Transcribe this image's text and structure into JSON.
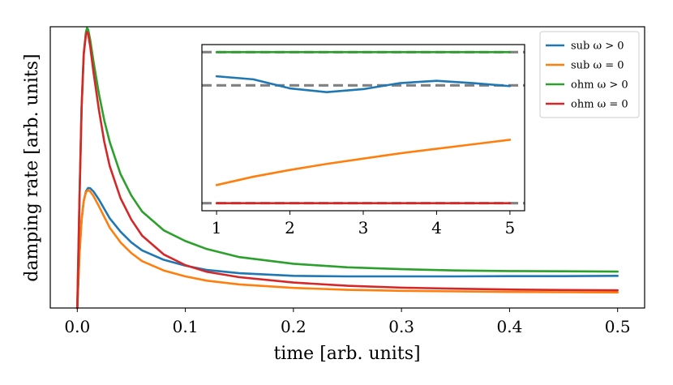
{
  "chart_data": [
    {
      "type": "line",
      "role": "main",
      "title": "",
      "xlabel": "time [arb. units]",
      "ylabel": "damping rate [arb. units]",
      "xlim": [
        -0.025,
        0.525
      ],
      "ylim": [
        0,
        1.05
      ],
      "xticks": [
        0.0,
        0.1,
        0.2,
        0.3,
        0.4,
        0.5
      ],
      "xtick_labels": [
        "0.0",
        "0.1",
        "0.2",
        "0.3",
        "0.4",
        "0.5"
      ],
      "series": [
        {
          "name": "sub ω > 0",
          "color": "#1f77b4",
          "x": [
            0,
            0.002,
            0.004,
            0.006,
            0.008,
            0.01,
            0.012,
            0.015,
            0.02,
            0.025,
            0.03,
            0.04,
            0.05,
            0.06,
            0.08,
            0.1,
            0.12,
            0.15,
            0.2,
            0.25,
            0.3,
            0.35,
            0.4,
            0.45,
            0.5
          ],
          "y": [
            0.0,
            0.2,
            0.33,
            0.4,
            0.435,
            0.448,
            0.447,
            0.435,
            0.405,
            0.37,
            0.335,
            0.285,
            0.245,
            0.215,
            0.18,
            0.158,
            0.142,
            0.13,
            0.12,
            0.118,
            0.118,
            0.118,
            0.119,
            0.119,
            0.12
          ]
        },
        {
          "name": "sub ω = 0",
          "color": "#ff7f0e",
          "x": [
            0,
            0.002,
            0.004,
            0.006,
            0.008,
            0.01,
            0.012,
            0.015,
            0.02,
            0.025,
            0.03,
            0.04,
            0.05,
            0.06,
            0.08,
            0.1,
            0.12,
            0.15,
            0.2,
            0.25,
            0.3,
            0.35,
            0.4,
            0.45,
            0.5
          ],
          "y": [
            0.0,
            0.2,
            0.33,
            0.4,
            0.432,
            0.44,
            0.435,
            0.418,
            0.38,
            0.34,
            0.3,
            0.245,
            0.205,
            0.175,
            0.14,
            0.118,
            0.102,
            0.088,
            0.075,
            0.068,
            0.064,
            0.062,
            0.06,
            0.059,
            0.058
          ]
        },
        {
          "name": "ohm ω > 0",
          "color": "#2ca02c",
          "x": [
            0,
            0.002,
            0.004,
            0.006,
            0.008,
            0.009,
            0.01,
            0.012,
            0.015,
            0.02,
            0.025,
            0.03,
            0.04,
            0.05,
            0.06,
            0.08,
            0.1,
            0.12,
            0.15,
            0.2,
            0.25,
            0.3,
            0.35,
            0.4,
            0.45,
            0.5
          ],
          "y": [
            0.0,
            0.4,
            0.75,
            0.95,
            1.03,
            1.045,
            1.04,
            1.0,
            0.92,
            0.8,
            0.7,
            0.62,
            0.5,
            0.42,
            0.36,
            0.29,
            0.25,
            0.22,
            0.19,
            0.165,
            0.152,
            0.145,
            0.14,
            0.138,
            0.137,
            0.136
          ]
        },
        {
          "name": "ohm ω = 0",
          "color": "#d62728",
          "x": [
            0,
            0.002,
            0.004,
            0.006,
            0.008,
            0.009,
            0.01,
            0.012,
            0.015,
            0.02,
            0.025,
            0.03,
            0.04,
            0.05,
            0.06,
            0.08,
            0.1,
            0.12,
            0.15,
            0.2,
            0.25,
            0.3,
            0.35,
            0.4,
            0.45,
            0.5
          ],
          "y": [
            0.0,
            0.4,
            0.75,
            0.95,
            1.02,
            1.03,
            1.025,
            0.975,
            0.88,
            0.74,
            0.62,
            0.53,
            0.41,
            0.33,
            0.27,
            0.2,
            0.16,
            0.135,
            0.115,
            0.095,
            0.083,
            0.076,
            0.072,
            0.069,
            0.067,
            0.066
          ]
        }
      ],
      "legend": {
        "position": "top-right",
        "entries": [
          {
            "label": "sub ω > 0",
            "color": "#1f77b4"
          },
          {
            "label": "sub ω = 0",
            "color": "#ff7f0e"
          },
          {
            "label": "ohm ω > 0",
            "color": "#2ca02c"
          },
          {
            "label": "ohm ω = 0",
            "color": "#d62728"
          }
        ]
      }
    },
    {
      "type": "line",
      "role": "inset",
      "title": "",
      "xlabel": "",
      "ylabel": "",
      "xlim": [
        0.8,
        5.2
      ],
      "ylim": [
        -0.05,
        1.05
      ],
      "xticks": [
        1,
        2,
        3,
        4,
        5
      ],
      "xtick_labels": [
        "1",
        "2",
        "3",
        "4",
        "5"
      ],
      "reference_lines": [
        {
          "style": "dashed",
          "color": "#808080",
          "y": 1.0
        },
        {
          "style": "dashed",
          "color": "#808080",
          "y": 0.78
        },
        {
          "style": "dashed",
          "color": "#808080",
          "y": 0.0
        }
      ],
      "series": [
        {
          "name": "sub ω > 0",
          "color": "#1f77b4",
          "x": [
            1,
            1.5,
            2,
            2.5,
            3,
            3.5,
            4,
            4.5,
            5
          ],
          "y": [
            0.84,
            0.82,
            0.76,
            0.735,
            0.755,
            0.795,
            0.81,
            0.795,
            0.775
          ]
        },
        {
          "name": "sub ω = 0",
          "color": "#ff7f0e",
          "x": [
            1,
            1.5,
            2,
            2.5,
            3,
            3.5,
            4,
            4.5,
            5
          ],
          "y": [
            0.12,
            0.175,
            0.22,
            0.26,
            0.295,
            0.33,
            0.36,
            0.39,
            0.42
          ]
        },
        {
          "name": "ohm ω > 0",
          "color": "#2ca02c",
          "x": [
            1,
            5
          ],
          "y": [
            1.0,
            1.0
          ]
        },
        {
          "name": "ohm ω = 0",
          "color": "#d62728",
          "x": [
            1,
            5
          ],
          "y": [
            0.0,
            0.0
          ]
        }
      ]
    }
  ]
}
